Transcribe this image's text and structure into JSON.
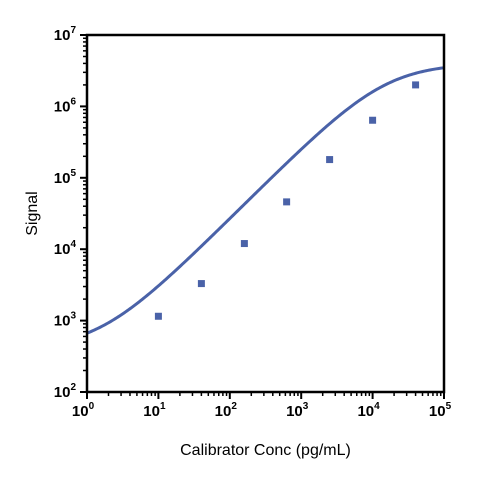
{
  "chart_data": {
    "type": "scatter",
    "title": "",
    "xlabel": "Calibrator Conc (pg/mL)",
    "ylabel": "Signal",
    "x_scale": "log",
    "y_scale": "log",
    "xlim": [
      1,
      100000
    ],
    "ylim": [
      100,
      10000000
    ],
    "x_ticks": [
      {
        "base": "10",
        "exp": "0"
      },
      {
        "base": "10",
        "exp": "1"
      },
      {
        "base": "10",
        "exp": "2"
      },
      {
        "base": "10",
        "exp": "3"
      },
      {
        "base": "10",
        "exp": "4"
      },
      {
        "base": "10",
        "exp": "5"
      }
    ],
    "y_ticks": [
      {
        "base": "10",
        "exp": "2"
      },
      {
        "base": "10",
        "exp": "3"
      },
      {
        "base": "10",
        "exp": "4"
      },
      {
        "base": "10",
        "exp": "5"
      },
      {
        "base": "10",
        "exp": "6"
      },
      {
        "base": "10",
        "exp": "7"
      }
    ],
    "grid": false,
    "colors": {
      "series": "#4a62a8",
      "axis": "#000000"
    },
    "series": [
      {
        "points": [
          {
            "x": 10,
            "y": 1150
          },
          {
            "x": 40,
            "y": 3300
          },
          {
            "x": 160,
            "y": 12000
          },
          {
            "x": 625,
            "y": 46000
          },
          {
            "x": 2500,
            "y": 180000
          },
          {
            "x": 10000,
            "y": 640000
          },
          {
            "x": 40000,
            "y": 2000000
          }
        ],
        "fit_curve": {
          "model": "4PL",
          "bottom": 400,
          "top": 4000000,
          "ec50": 15000,
          "hill": 1.0
        }
      }
    ]
  }
}
